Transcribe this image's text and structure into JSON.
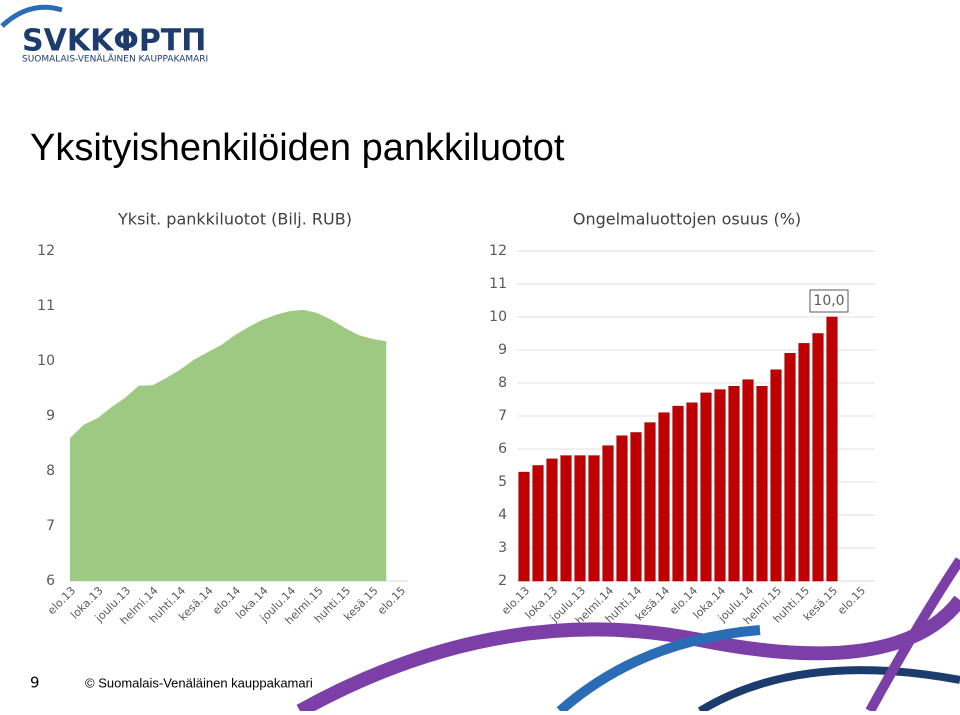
{
  "logo": {
    "brand": "SVKKΦPTП",
    "subtitle": "SUOMALAIS-VENÄLÄINEN KAUPPAKAMARI"
  },
  "title": "Yksityishenkilöiden pankkiluotot",
  "footer": {
    "page": "9",
    "copyright": "© Suomalais-Venäläinen kauppakamari"
  },
  "chart_data": [
    {
      "type": "area",
      "title": "Yksit. pankkiluotot (Bilj. RUB)",
      "categories": [
        "elo.13",
        null,
        "loka.13",
        null,
        "joulu.13",
        null,
        "helmi.14",
        null,
        "huhti.14",
        null,
        "kesä.14",
        null,
        "elo.14",
        null,
        "loka.14",
        null,
        "joulu.14",
        null,
        "helmi.15",
        null,
        "huhti.15",
        null,
        "kesä.15",
        null,
        "elo.15"
      ],
      "values": [
        8.6,
        8.84,
        8.96,
        9.16,
        9.33,
        9.55,
        9.56,
        9.69,
        9.84,
        10.02,
        10.16,
        10.29,
        10.47,
        10.62,
        10.75,
        10.84,
        10.91,
        10.93,
        10.87,
        10.75,
        10.6,
        10.47,
        10.4,
        10.36,
        null
      ],
      "color": "#9dc983",
      "ylim": [
        6,
        12
      ],
      "yticks": [
        6,
        7,
        8,
        9,
        10,
        11,
        12
      ],
      "grid": false
    },
    {
      "type": "bar",
      "title": "Ongelmaluottojen osuus (%)",
      "categories": [
        "elo.13",
        null,
        "loka.13",
        null,
        "joulu.13",
        null,
        "helmi.14",
        null,
        "huhti.14",
        null,
        "kesä.14",
        null,
        "elo.14",
        null,
        "loka.14",
        null,
        "joulu.14",
        null,
        "helmi.15",
        null,
        "huhti.15",
        null,
        "kesä.15",
        null,
        "elo.15"
      ],
      "values": [
        5.3,
        5.5,
        5.7,
        5.8,
        5.8,
        5.8,
        6.1,
        6.4,
        6.5,
        6.8,
        7.1,
        7.3,
        7.4,
        7.7,
        7.8,
        7.9,
        8.1,
        7.9,
        8.4,
        8.9,
        9.2,
        9.5,
        10.0,
        null,
        null
      ],
      "value_labels": [
        null,
        null,
        null,
        null,
        null,
        null,
        null,
        null,
        null,
        null,
        null,
        null,
        null,
        null,
        null,
        null,
        null,
        null,
        null,
        null,
        null,
        null,
        "10,0",
        null,
        null
      ],
      "color": "#c00000",
      "ylim": [
        2,
        12
      ],
      "yticks": [
        2,
        3,
        4,
        5,
        6,
        7,
        8,
        9,
        10,
        11,
        12
      ],
      "grid": true
    }
  ]
}
